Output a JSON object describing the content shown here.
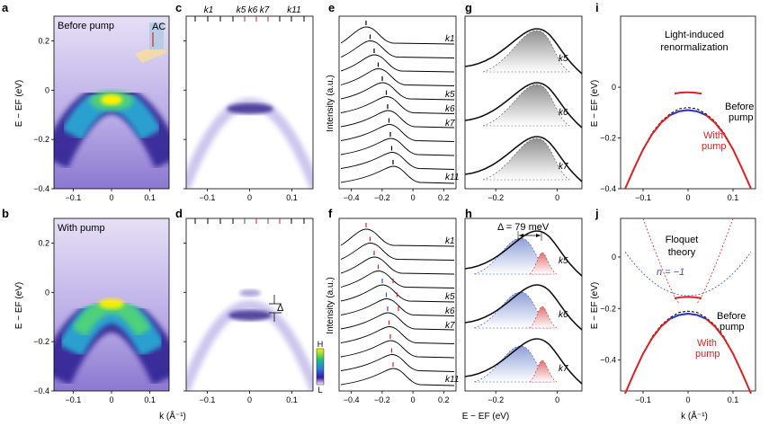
{
  "panels": {
    "a": {
      "letter": "a",
      "title": "Before pump",
      "inset_label": "AC"
    },
    "b": {
      "letter": "b",
      "title": "With pump"
    },
    "c": {
      "letter": "c",
      "k_labels": [
        "k1",
        "k5",
        "k6",
        "k7",
        "k11"
      ]
    },
    "d": {
      "letter": "d",
      "gap_label": "Δ",
      "colorbar_high": "H",
      "colorbar_low": "L"
    },
    "e": {
      "letter": "e",
      "ylabel": "Intensity (a.u.)",
      "curve_labels": [
        "k1",
        "k5",
        "k6",
        "k7",
        "k11"
      ]
    },
    "f": {
      "letter": "f",
      "ylabel": "Intensity (a.u.)",
      "curve_labels": [
        "k1",
        "k5",
        "k6",
        "k7",
        "k11"
      ]
    },
    "g": {
      "letter": "g",
      "curve_labels": [
        "k5",
        "k6",
        "k7"
      ]
    },
    "h": {
      "letter": "h",
      "delta_label": "Δ = 79 meV",
      "curve_labels": [
        "k5",
        "k6",
        "k7"
      ]
    },
    "i": {
      "letter": "i",
      "title_lines": [
        "Light-induced",
        "renormalization"
      ],
      "before_lines": [
        "Before",
        "pump"
      ],
      "with_lines": [
        "With",
        "pump"
      ],
      "ylabel": "E − EF (eV)"
    },
    "j": {
      "letter": "j",
      "title_lines": [
        "Floquet",
        "theory"
      ],
      "n_label": "n = −1",
      "before_lines": [
        "Before",
        "pump"
      ],
      "with_lines": [
        "With",
        "pump"
      ],
      "ylabel": "E − EF (eV)",
      "xlabel": "k (Å⁻¹)"
    }
  },
  "axes": {
    "arpes_ylabel": "E − EF (eV)",
    "arpes_xlabel": "k (Å⁻¹)",
    "edc_xlabel": "E − EF (eV)",
    "arpes_yticks": [
      "0.2",
      "0",
      "−0.2",
      "−0.4"
    ],
    "arpes_xticks": [
      "−0.1",
      "0",
      "0.1"
    ],
    "edc_xticks": [
      "−0.4",
      "−0.2",
      "0",
      "0.2"
    ],
    "g_xticks": [
      "−0.2",
      "0"
    ],
    "i_yticks": [
      "0",
      "−0.2",
      "−0.4"
    ],
    "j_yticks": [
      "0",
      "−0.2",
      "−0.4"
    ]
  },
  "chart_data": {
    "type": "line",
    "title": "",
    "xlabel": "k (Å⁻¹)",
    "ylabel": "E − EF (eV)",
    "x": [
      -0.14,
      -0.12,
      -0.1,
      -0.08,
      -0.06,
      -0.04,
      -0.02,
      0,
      0.02,
      0.04,
      0.06,
      0.08,
      0.1,
      0.12,
      0.14
    ],
    "series": [
      {
        "name": "Before pump",
        "values": [
          -0.4,
          -0.32,
          -0.245,
          -0.18,
          -0.135,
          -0.105,
          -0.085,
          -0.08,
          -0.085,
          -0.105,
          -0.135,
          -0.18,
          -0.245,
          -0.32,
          -0.4
        ]
      },
      {
        "name": "With pump",
        "values": [
          -0.4,
          -0.32,
          -0.245,
          -0.185,
          -0.14,
          -0.11,
          -0.095,
          -0.09,
          -0.095,
          -0.11,
          -0.14,
          -0.185,
          -0.245,
          -0.32,
          -0.4
        ]
      }
    ],
    "ylim": [
      -0.4,
      0.3
    ],
    "xlim": [
      -0.15,
      0.15
    ],
    "delta_meV": 79
  },
  "colors": {
    "pump": "#e02020",
    "before": "#000000",
    "blue": "#3a4fc8"
  }
}
